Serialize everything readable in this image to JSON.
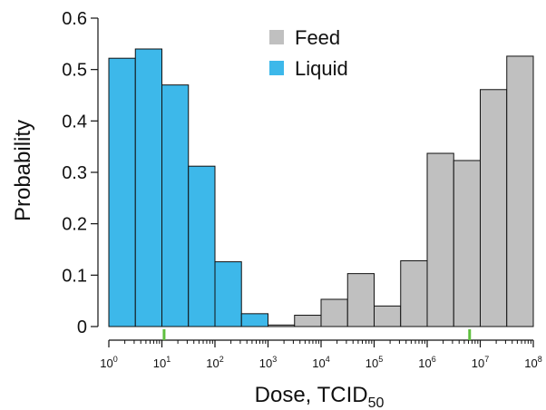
{
  "chart_data": {
    "type": "bar",
    "xlabel": {
      "base": "Dose, TCID",
      "sub": "50"
    },
    "ylabel": "Probability",
    "x_scale": "log10",
    "xlim": [
      1,
      100000000
    ],
    "ylim": [
      0,
      0.6
    ],
    "y_ticks": [
      "0",
      "0.1",
      "0.2",
      "0.3",
      "0.4",
      "0.5",
      "0.6"
    ],
    "x_ticks": [
      {
        "base": "10",
        "exp": "0"
      },
      {
        "base": "10",
        "exp": "1"
      },
      {
        "base": "10",
        "exp": "2"
      },
      {
        "base": "10",
        "exp": "3"
      },
      {
        "base": "10",
        "exp": "4"
      },
      {
        "base": "10",
        "exp": "5"
      },
      {
        "base": "10",
        "exp": "6"
      },
      {
        "base": "10",
        "exp": "7"
      },
      {
        "base": "10",
        "exp": "8"
      }
    ],
    "legend_position": "top-center",
    "series": [
      {
        "name": "Feed",
        "color": "#c0c0c0",
        "bins": [
          {
            "from": 1000,
            "to": 3162,
            "value": 0.003
          },
          {
            "from": 3162,
            "to": 10000,
            "value": 0.022
          },
          {
            "from": 10000,
            "to": 31623,
            "value": 0.053
          },
          {
            "from": 31623,
            "to": 100000,
            "value": 0.103
          },
          {
            "from": 100000,
            "to": 316228,
            "value": 0.04
          },
          {
            "from": 316228,
            "to": 1000000,
            "value": 0.128
          },
          {
            "from": 1000000,
            "to": 3162278,
            "value": 0.337
          },
          {
            "from": 3162278,
            "to": 10000000,
            "value": 0.323
          },
          {
            "from": 10000000,
            "to": 31622777,
            "value": 0.461
          },
          {
            "from": 31622777,
            "to": 100000000,
            "value": 0.526
          }
        ]
      },
      {
        "name": "Liquid",
        "color": "#3db8ea",
        "bins": [
          {
            "from": 1,
            "to": 3.162,
            "value": 0.522
          },
          {
            "from": 3.162,
            "to": 10,
            "value": 0.54
          },
          {
            "from": 10,
            "to": 31.62,
            "value": 0.47
          },
          {
            "from": 31.62,
            "to": 100,
            "value": 0.312
          },
          {
            "from": 100,
            "to": 316.2,
            "value": 0.126
          },
          {
            "from": 316.2,
            "to": 1000,
            "value": 0.025
          }
        ]
      }
    ],
    "markers": {
      "color": "#5fbf3f",
      "x": [
        11,
        6300000
      ]
    }
  }
}
